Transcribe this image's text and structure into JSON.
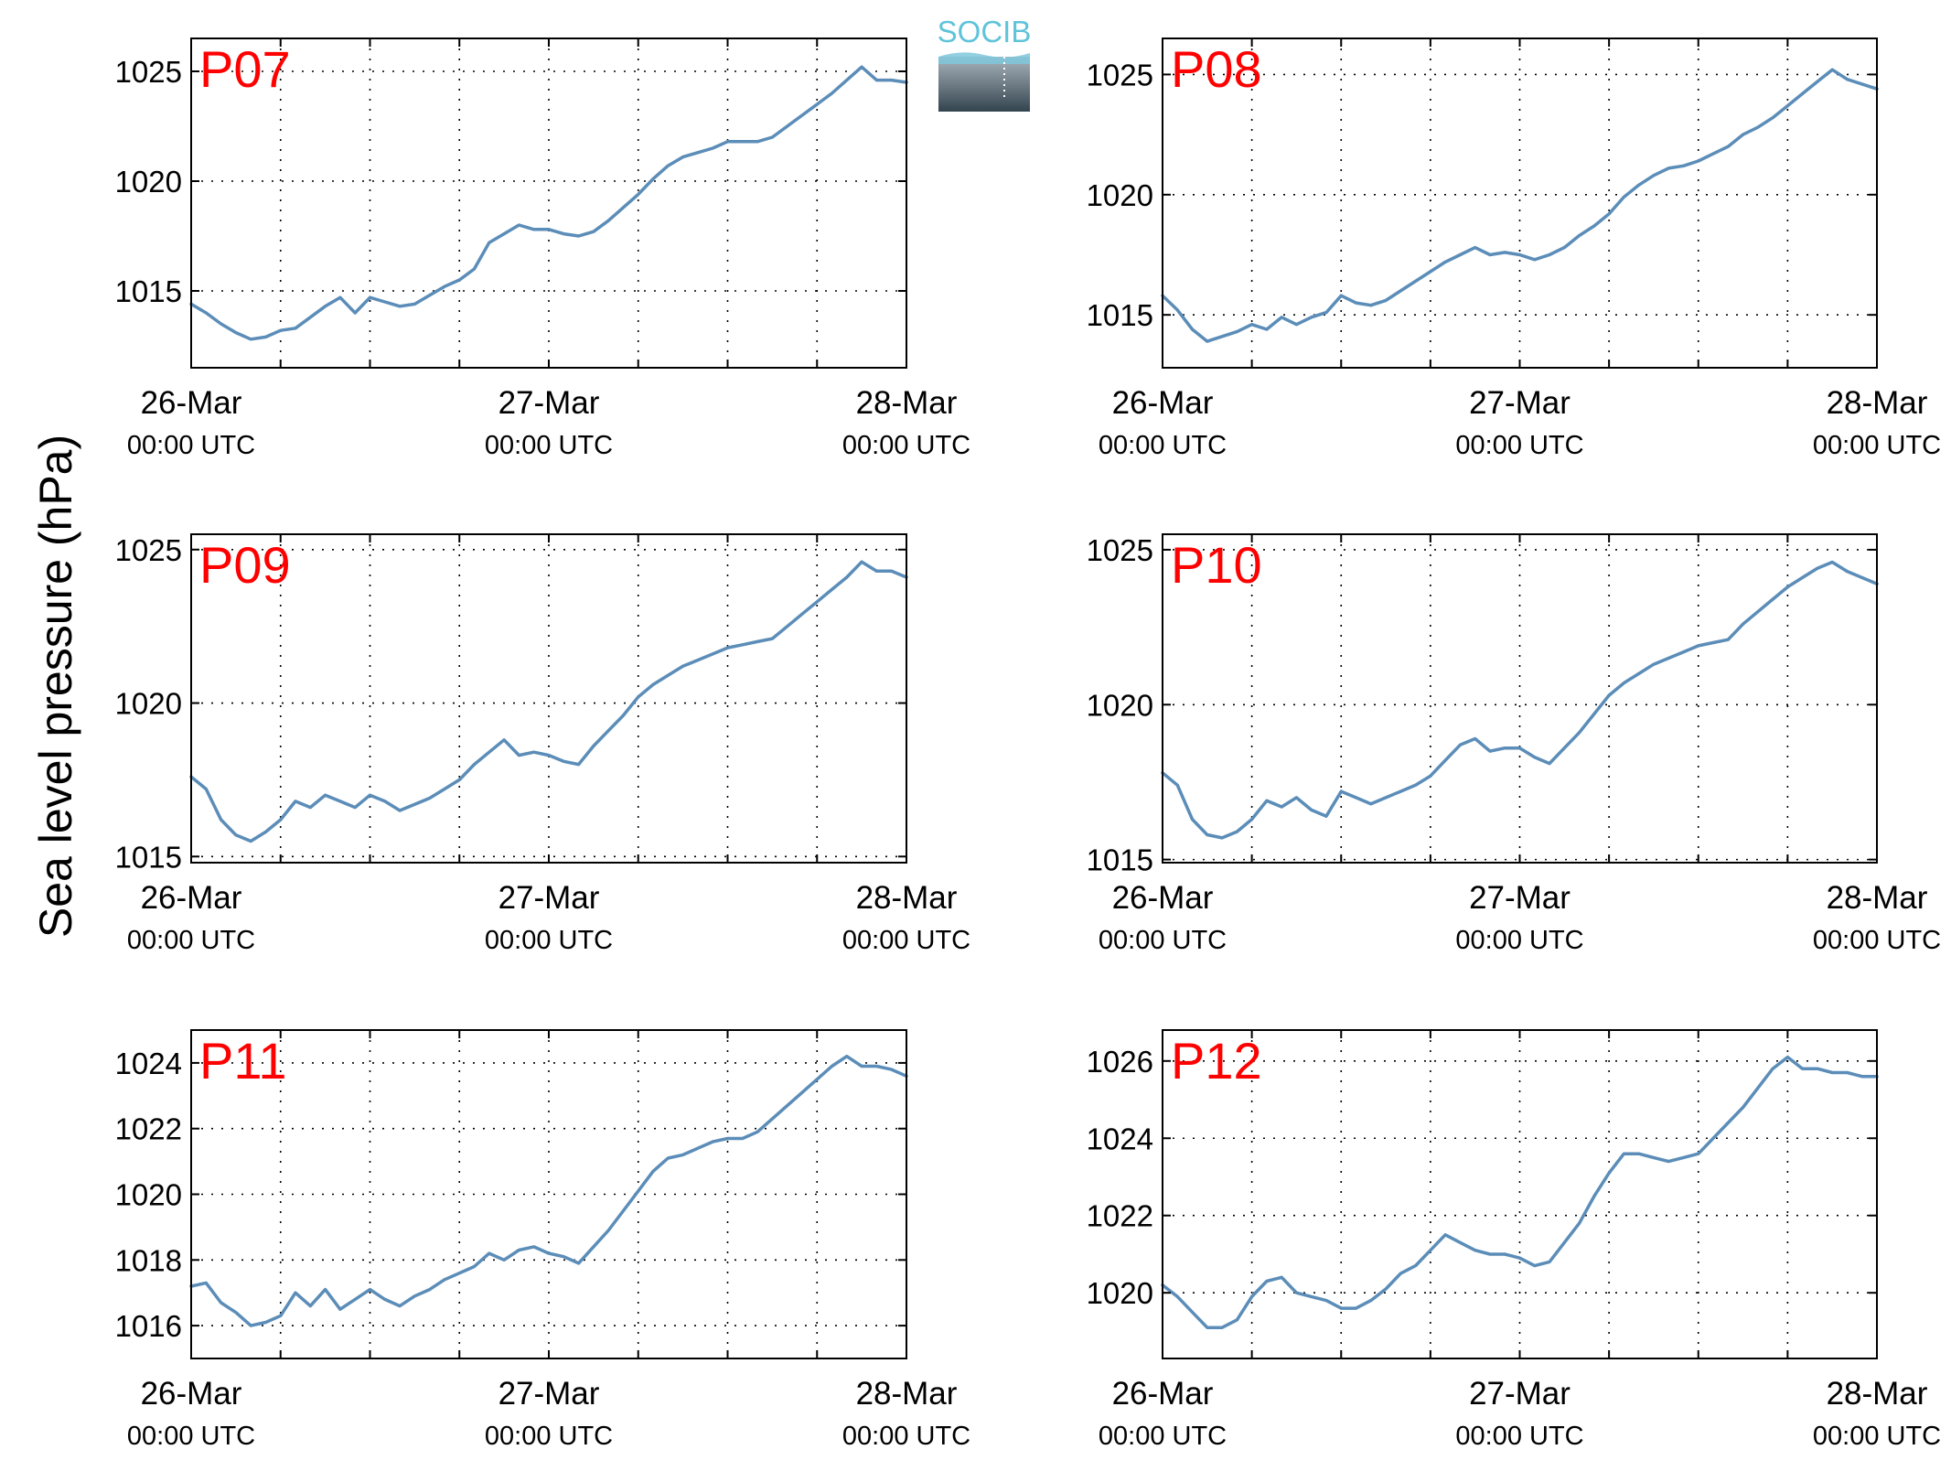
{
  "figure": {
    "ylabel": "Sea level pressure (hPa)",
    "logo_text": "SOCIB",
    "line_color": "#5b8db8",
    "title_color": "#ff0000"
  },
  "chart_data": [
    {
      "type": "line",
      "title": "P07",
      "xlabel": "",
      "ylabel": "Sea level pressure (hPa)",
      "x_ticks": [
        {
          "x": 0,
          "line1": "26-Mar",
          "line2": "00:00 UTC"
        },
        {
          "x": 24,
          "line1": "27-Mar",
          "line2": "00:00 UTC"
        },
        {
          "x": 48,
          "line1": "28-Mar",
          "line2": "00:00 UTC"
        }
      ],
      "xlim": [
        0,
        48
      ],
      "ylim": [
        1011.5,
        1026.5
      ],
      "yticks": [
        1015,
        1020,
        1025
      ],
      "grid": true,
      "series": [
        {
          "x": [
            0,
            1,
            2,
            3,
            4,
            5,
            6,
            7,
            8,
            9,
            10,
            11,
            12,
            13,
            14,
            15,
            16,
            17,
            18,
            19,
            20,
            21,
            22,
            23,
            24,
            25,
            26,
            27,
            28,
            29,
            30,
            31,
            32,
            33,
            34,
            35,
            36,
            37,
            38,
            39,
            40,
            41,
            42,
            43,
            44,
            45,
            46,
            47,
            48
          ],
          "values": [
            1014.4,
            1014.0,
            1013.5,
            1013.1,
            1012.8,
            1012.9,
            1013.2,
            1013.3,
            1013.8,
            1014.3,
            1014.7,
            1014.0,
            1014.7,
            1014.5,
            1014.3,
            1014.4,
            1014.8,
            1015.2,
            1015.5,
            1016.0,
            1017.2,
            1017.6,
            1018.0,
            1017.8,
            1017.8,
            1017.6,
            1017.5,
            1017.7,
            1018.2,
            1018.8,
            1019.4,
            1020.1,
            1020.7,
            1021.1,
            1021.3,
            1021.5,
            1021.8,
            1021.8,
            1021.8,
            1022.0,
            1022.5,
            1023.0,
            1023.5,
            1024.0,
            1024.6,
            1025.2,
            1024.6,
            1024.6,
            1024.5
          ]
        }
      ]
    },
    {
      "type": "line",
      "title": "P08",
      "xlabel": "",
      "ylabel": "Sea level pressure (hPa)",
      "x_ticks": [
        {
          "x": 0,
          "line1": "26-Mar",
          "line2": "00:00 UTC"
        },
        {
          "x": 24,
          "line1": "27-Mar",
          "line2": "00:00 UTC"
        },
        {
          "x": 48,
          "line1": "28-Mar",
          "line2": "00:00 UTC"
        }
      ],
      "xlim": [
        0,
        48
      ],
      "ylim": [
        1012.8,
        1026.5
      ],
      "yticks": [
        1015,
        1020,
        1025
      ],
      "grid": true,
      "series": [
        {
          "x": [
            0,
            1,
            2,
            3,
            4,
            5,
            6,
            7,
            8,
            9,
            10,
            11,
            12,
            13,
            14,
            15,
            16,
            17,
            18,
            19,
            20,
            21,
            22,
            23,
            24,
            25,
            26,
            27,
            28,
            29,
            30,
            31,
            32,
            33,
            34,
            35,
            36,
            37,
            38,
            39,
            40,
            41,
            42,
            43,
            44,
            45,
            46,
            47,
            48
          ],
          "values": [
            1015.8,
            1015.2,
            1014.4,
            1013.9,
            1014.1,
            1014.3,
            1014.6,
            1014.4,
            1014.9,
            1014.6,
            1014.9,
            1015.1,
            1015.8,
            1015.5,
            1015.4,
            1015.6,
            1016.0,
            1016.4,
            1016.8,
            1017.2,
            1017.5,
            1017.8,
            1017.5,
            1017.6,
            1017.5,
            1017.3,
            1017.5,
            1017.8,
            1018.3,
            1018.7,
            1019.2,
            1019.9,
            1020.4,
            1020.8,
            1021.1,
            1021.2,
            1021.4,
            1021.7,
            1022.0,
            1022.5,
            1022.8,
            1023.2,
            1023.7,
            1024.2,
            1024.7,
            1025.2,
            1024.8,
            1024.6,
            1024.4
          ]
        }
      ]
    },
    {
      "type": "line",
      "title": "P09",
      "xlabel": "",
      "ylabel": "Sea level pressure (hPa)",
      "x_ticks": [
        {
          "x": 0,
          "line1": "26-Mar",
          "line2": "00:00 UTC"
        },
        {
          "x": 24,
          "line1": "27-Mar",
          "line2": "00:00 UTC"
        },
        {
          "x": 48,
          "line1": "28-Mar",
          "line2": "00:00 UTC"
        }
      ],
      "xlim": [
        0,
        48
      ],
      "ylim": [
        1014.8,
        1025.5
      ],
      "yticks": [
        1015,
        1020,
        1025
      ],
      "grid": true,
      "series": [
        {
          "x": [
            0,
            1,
            2,
            3,
            4,
            5,
            6,
            7,
            8,
            9,
            10,
            11,
            12,
            13,
            14,
            15,
            16,
            17,
            18,
            19,
            20,
            21,
            22,
            23,
            24,
            25,
            26,
            27,
            28,
            29,
            30,
            31,
            32,
            33,
            34,
            35,
            36,
            37,
            38,
            39,
            40,
            41,
            42,
            43,
            44,
            45,
            46,
            47,
            48
          ],
          "values": [
            1017.6,
            1017.2,
            1016.2,
            1015.7,
            1015.5,
            1015.8,
            1016.2,
            1016.8,
            1016.6,
            1017.0,
            1016.8,
            1016.6,
            1017.0,
            1016.8,
            1016.5,
            1016.7,
            1016.9,
            1017.2,
            1017.5,
            1018.0,
            1018.4,
            1018.8,
            1018.3,
            1018.4,
            1018.3,
            1018.1,
            1018.0,
            1018.6,
            1019.1,
            1019.6,
            1020.2,
            1020.6,
            1020.9,
            1021.2,
            1021.4,
            1021.6,
            1021.8,
            1021.9,
            1022.0,
            1022.1,
            1022.5,
            1022.9,
            1023.3,
            1023.7,
            1024.1,
            1024.6,
            1024.3,
            1024.3,
            1024.1
          ]
        }
      ]
    },
    {
      "type": "line",
      "title": "P10",
      "xlabel": "",
      "ylabel": "Sea level pressure (hPa)",
      "x_ticks": [
        {
          "x": 0,
          "line1": "26-Mar",
          "line2": "00:00 UTC"
        },
        {
          "x": 24,
          "line1": "27-Mar",
          "line2": "00:00 UTC"
        },
        {
          "x": 48,
          "line1": "28-Mar",
          "line2": "00:00 UTC"
        }
      ],
      "xlim": [
        0,
        48
      ],
      "ylim": [
        1014.9,
        1025.5
      ],
      "yticks": [
        1015,
        1020,
        1025
      ],
      "grid": true,
      "series": [
        {
          "x": [
            0,
            1,
            2,
            3,
            4,
            5,
            6,
            7,
            8,
            9,
            10,
            11,
            12,
            13,
            14,
            15,
            16,
            17,
            18,
            19,
            20,
            21,
            22,
            23,
            24,
            25,
            26,
            27,
            28,
            29,
            30,
            31,
            32,
            33,
            34,
            35,
            36,
            37,
            38,
            39,
            40,
            41,
            42,
            43,
            44,
            45,
            46,
            47,
            48
          ],
          "values": [
            1017.8,
            1017.4,
            1016.3,
            1015.8,
            1015.7,
            1015.9,
            1016.3,
            1016.9,
            1016.7,
            1017.0,
            1016.6,
            1016.4,
            1017.2,
            1017.0,
            1016.8,
            1017.0,
            1017.2,
            1017.4,
            1017.7,
            1018.2,
            1018.7,
            1018.9,
            1018.5,
            1018.6,
            1018.6,
            1018.3,
            1018.1,
            1018.6,
            1019.1,
            1019.7,
            1020.3,
            1020.7,
            1021.0,
            1021.3,
            1021.5,
            1021.7,
            1021.9,
            1022.0,
            1022.1,
            1022.6,
            1023.0,
            1023.4,
            1023.8,
            1024.1,
            1024.4,
            1024.6,
            1024.3,
            1024.1,
            1023.9
          ]
        }
      ]
    },
    {
      "type": "line",
      "title": "P11",
      "xlabel": "",
      "ylabel": "Sea level pressure (hPa)",
      "x_ticks": [
        {
          "x": 0,
          "line1": "26-Mar",
          "line2": "00:00 UTC"
        },
        {
          "x": 24,
          "line1": "27-Mar",
          "line2": "00:00 UTC"
        },
        {
          "x": 48,
          "line1": "28-Mar",
          "line2": "00:00 UTC"
        }
      ],
      "xlim": [
        0,
        48
      ],
      "ylim": [
        1015.0,
        1025.0
      ],
      "yticks": [
        1016,
        1018,
        1020,
        1022,
        1024
      ],
      "grid": true,
      "series": [
        {
          "x": [
            0,
            1,
            2,
            3,
            4,
            5,
            6,
            7,
            8,
            9,
            10,
            11,
            12,
            13,
            14,
            15,
            16,
            17,
            18,
            19,
            20,
            21,
            22,
            23,
            24,
            25,
            26,
            27,
            28,
            29,
            30,
            31,
            32,
            33,
            34,
            35,
            36,
            37,
            38,
            39,
            40,
            41,
            42,
            43,
            44,
            45,
            46,
            47,
            48
          ],
          "values": [
            1017.2,
            1017.3,
            1016.7,
            1016.4,
            1016.0,
            1016.1,
            1016.3,
            1017.0,
            1016.6,
            1017.1,
            1016.5,
            1016.8,
            1017.1,
            1016.8,
            1016.6,
            1016.9,
            1017.1,
            1017.4,
            1017.6,
            1017.8,
            1018.2,
            1018.0,
            1018.3,
            1018.4,
            1018.2,
            1018.1,
            1017.9,
            1018.4,
            1018.9,
            1019.5,
            1020.1,
            1020.7,
            1021.1,
            1021.2,
            1021.4,
            1021.6,
            1021.7,
            1021.7,
            1021.9,
            1022.3,
            1022.7,
            1023.1,
            1023.5,
            1023.9,
            1024.2,
            1023.9,
            1023.9,
            1023.8,
            1023.6
          ]
        }
      ]
    },
    {
      "type": "line",
      "title": "P12",
      "xlabel": "",
      "ylabel": "Sea level pressure (hPa)",
      "x_ticks": [
        {
          "x": 0,
          "line1": "26-Mar",
          "line2": "00:00 UTC"
        },
        {
          "x": 24,
          "line1": "27-Mar",
          "line2": "00:00 UTC"
        },
        {
          "x": 48,
          "line1": "28-Mar",
          "line2": "00:00 UTC"
        }
      ],
      "xlim": [
        0,
        48
      ],
      "ylim": [
        1018.3,
        1026.8
      ],
      "yticks": [
        1020,
        1022,
        1024,
        1026
      ],
      "grid": true,
      "series": [
        {
          "x": [
            0,
            1,
            2,
            3,
            4,
            5,
            6,
            7,
            8,
            9,
            10,
            11,
            12,
            13,
            14,
            15,
            16,
            17,
            18,
            19,
            20,
            21,
            22,
            23,
            24,
            25,
            26,
            27,
            28,
            29,
            30,
            31,
            32,
            33,
            34,
            35,
            36,
            37,
            38,
            39,
            40,
            41,
            42,
            43,
            44,
            45,
            46,
            47,
            48
          ],
          "values": [
            1020.2,
            1019.9,
            1019.5,
            1019.1,
            1019.1,
            1019.3,
            1019.9,
            1020.3,
            1020.4,
            1020.0,
            1019.9,
            1019.8,
            1019.6,
            1019.6,
            1019.8,
            1020.1,
            1020.5,
            1020.7,
            1021.1,
            1021.5,
            1021.3,
            1021.1,
            1021.0,
            1021.0,
            1020.9,
            1020.7,
            1020.8,
            1021.3,
            1021.8,
            1022.5,
            1023.1,
            1023.6,
            1023.6,
            1023.5,
            1023.4,
            1023.5,
            1023.6,
            1024.0,
            1024.4,
            1024.8,
            1025.3,
            1025.8,
            1026.1,
            1025.8,
            1025.8,
            1025.7,
            1025.7,
            1025.6,
            1025.6
          ]
        }
      ]
    }
  ]
}
